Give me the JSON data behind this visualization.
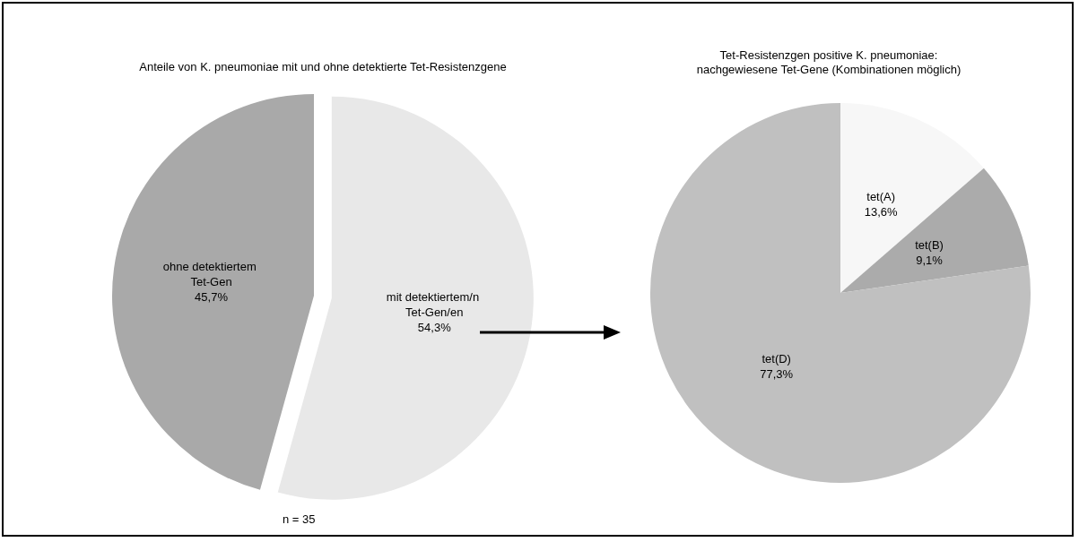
{
  "chart_data": [
    {
      "type": "pie",
      "title": "Anteile von K. pneumoniae mit und ohne detektierte Tet-Resistenzgene",
      "categories": [
        "mit detektiertem/n Tet-Gen/en",
        "ohne detektiertem Tet-Gen"
      ],
      "values": [
        54.3,
        45.7
      ],
      "value_labels": [
        "54,3%",
        "45,7%"
      ],
      "colors": [
        "#e8e8e8",
        "#a9a9a9"
      ],
      "legend": false,
      "annotations": [
        "n = 35"
      ]
    },
    {
      "type": "pie",
      "title": "Tet-Resistenzgen positive K. pneumoniae:",
      "subtitle": "nachgewiesene Tet-Gene (Kombinationen möglich)",
      "categories": [
        "tet(A)",
        "tet(B)",
        "tet(D)"
      ],
      "values": [
        13.6,
        9.1,
        77.3
      ],
      "value_labels": [
        "13,6%",
        "9,1%",
        "77,3%"
      ],
      "colors": [
        "#f7f7f7",
        "#ababab",
        "#c0c0c0"
      ],
      "legend": false
    }
  ]
}
